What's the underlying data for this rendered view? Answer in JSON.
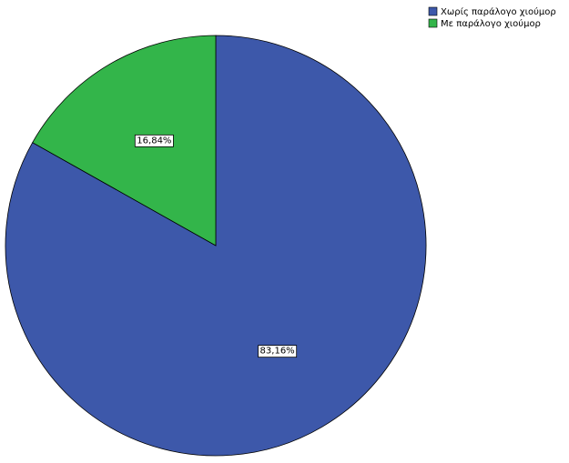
{
  "chart_data": {
    "type": "pie",
    "categories": [
      "Χωρίς παράλογο χιούμορ",
      "Με παράλογο χιούμορ"
    ],
    "values": [
      83.16,
      16.84
    ],
    "value_labels": [
      "83,16%",
      "16,84%"
    ],
    "colors": [
      "#3d58aa",
      "#33b54a"
    ],
    "legend": "top-right"
  }
}
